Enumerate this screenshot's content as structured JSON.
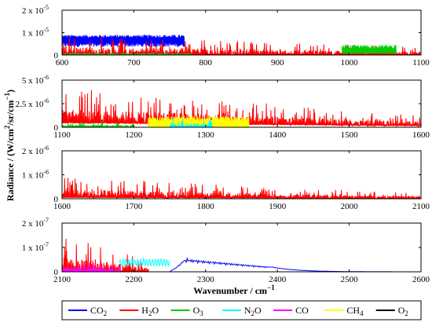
{
  "chart_data": {
    "type": "line",
    "ylabel_parts": [
      "Radiance / (W/cm",
      "2",
      "/sr/cm",
      "−1",
      ")"
    ],
    "xlabel_parts": [
      "Wavenumber / cm",
      "−1"
    ],
    "legend": [
      {
        "base": "CO",
        "sub": "2",
        "color": "#0000ff"
      },
      {
        "base": "H",
        "sub": "2",
        "after": "O",
        "color": "#ff0000"
      },
      {
        "base": "O",
        "sub": "3",
        "color": "#00cc00"
      },
      {
        "base": "N",
        "sub": "2",
        "after": "O",
        "color": "#00ffff"
      },
      {
        "base": "CO",
        "sub": "",
        "color": "#ff00ff"
      },
      {
        "base": "CH",
        "sub": "4",
        "color": "#ffff00"
      },
      {
        "base": "O",
        "sub": "2",
        "color": "#000000"
      }
    ],
    "panels": [
      {
        "xlim": [
          600,
          1100
        ],
        "xticks": [
          600,
          700,
          800,
          900,
          1000,
          1100
        ],
        "ylim": [
          0,
          2e-05
        ],
        "yticks": [
          {
            "value": 0,
            "mantissa": "0",
            "exp": ""
          },
          {
            "value": 1e-05,
            "mantissa": "1 x 10",
            "exp": "-5"
          },
          {
            "value": 2e-05,
            "mantissa": "2 x 10",
            "exp": "-5"
          }
        ],
        "bands": [
          {
            "species": "CO2",
            "x_start": 600,
            "x_end": 770,
            "peak": 9e-06,
            "floor": 6e-06,
            "style": "blocky"
          },
          {
            "species": "H2O",
            "x_start": 600,
            "x_end": 1100,
            "peak": 9e-06,
            "floor": 0,
            "style": "spiky",
            "decay": 0.6
          },
          {
            "species": "O3",
            "x_start": 990,
            "x_end": 1065,
            "peak": 4.5e-06,
            "floor": 1e-06,
            "style": "blocky"
          },
          {
            "species": "O3",
            "x_start": 600,
            "x_end": 780,
            "peak": 1.2e-06,
            "floor": 0,
            "style": "spiky"
          }
        ]
      },
      {
        "xlim": [
          1100,
          1600
        ],
        "xticks": [
          1100,
          1200,
          1300,
          1400,
          1500,
          1600
        ],
        "ylim": [
          0,
          5e-06
        ],
        "yticks": [
          {
            "value": 0,
            "mantissa": "0",
            "exp": ""
          },
          {
            "value": 2.5e-06,
            "mantissa": "2.5 x 10",
            "exp": "-6"
          },
          {
            "value": 5e-06,
            "mantissa": "5 x 10",
            "exp": "-6"
          }
        ],
        "bands": [
          {
            "species": "H2O",
            "x_start": 1100,
            "x_end": 1600,
            "peak": 4.2e-06,
            "floor": 5e-07,
            "style": "spiky",
            "decay": 0.7
          },
          {
            "species": "CH4",
            "x_start": 1220,
            "x_end": 1360,
            "peak": 1.2e-06,
            "floor": 0,
            "style": "blocky"
          },
          {
            "species": "N2O",
            "x_start": 1250,
            "x_end": 1310,
            "peak": 1e-06,
            "floor": 0,
            "style": "spiky"
          },
          {
            "species": "O3",
            "x_start": 1100,
            "x_end": 1200,
            "peak": 6e-07,
            "floor": 0,
            "style": "spiky"
          }
        ]
      },
      {
        "xlim": [
          1600,
          2100
        ],
        "xticks": [
          1600,
          1700,
          1800,
          1900,
          2000,
          2100
        ],
        "ylim": [
          0,
          2e-06
        ],
        "yticks": [
          {
            "value": 0,
            "mantissa": "0",
            "exp": ""
          },
          {
            "value": 1e-06,
            "mantissa": "1 x 10",
            "exp": "-6"
          },
          {
            "value": 2e-06,
            "mantissa": "2 x 10",
            "exp": "-6"
          }
        ],
        "bands": [
          {
            "species": "H2O",
            "x_start": 1600,
            "x_end": 2100,
            "peak": 9e-07,
            "floor": 5e-08,
            "style": "spiky",
            "decay": 0.75
          }
        ]
      },
      {
        "xlim": [
          2100,
          2600
        ],
        "xticks": [
          2100,
          2200,
          2300,
          2400,
          2500,
          2600
        ],
        "ylim": [
          0,
          2e-07
        ],
        "yticks": [
          {
            "value": 0,
            "mantissa": "0",
            "exp": ""
          },
          {
            "value": 1e-07,
            "mantissa": "1 x 10",
            "exp": "-7"
          },
          {
            "value": 2e-07,
            "mantissa": "2 x 10",
            "exp": "-7"
          }
        ],
        "bands": [
          {
            "species": "H2O",
            "x_start": 2100,
            "x_end": 2220,
            "peak": 1.55e-07,
            "floor": 0,
            "style": "spiky",
            "decay": 0.7
          },
          {
            "species": "CO",
            "x_start": 2100,
            "x_end": 2180,
            "peak": 5e-08,
            "floor": 0,
            "style": "spiky"
          },
          {
            "species": "N2O",
            "x_start": 2180,
            "x_end": 2250,
            "peak": 5.5e-08,
            "floor": 2.5e-08,
            "style": "wavy"
          },
          {
            "species": "CO2",
            "x_start": 2250,
            "x_end": 2600,
            "peak": 6e-08,
            "floor": 0,
            "style": "co2tail"
          },
          {
            "species": "O2",
            "x_start": 2100,
            "x_end": 2600,
            "peak": 1e-09,
            "floor": 0,
            "style": "flat"
          }
        ]
      }
    ]
  }
}
